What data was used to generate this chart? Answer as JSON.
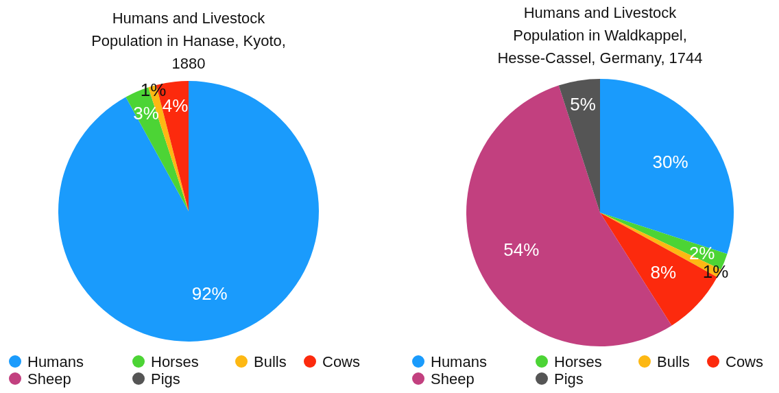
{
  "chart_data": [
    {
      "type": "pie",
      "title": "Humans and Livestock\nPopulation in Hanase, Kyoto,\n1880",
      "categories": [
        "Humans",
        "Horses",
        "Bulls",
        "Cows",
        "Sheep",
        "Pigs"
      ],
      "values": [
        92,
        3,
        1,
        4,
        0,
        0
      ],
      "value_labels": [
        "92%",
        "3%",
        "1%",
        "4%",
        null,
        null
      ],
      "colors": [
        "#1a9bfc",
        "#4cd435",
        "#fdb813",
        "#fc2a0d",
        "#c2407f",
        "#555555"
      ],
      "legend": "bottom"
    },
    {
      "type": "pie",
      "title": "Humans and Livestock\nPopulation in Waldkappel,\nHesse-Cassel, Germany, 1744",
      "categories": [
        "Humans",
        "Horses",
        "Bulls",
        "Cows",
        "Sheep",
        "Pigs"
      ],
      "values": [
        30,
        2,
        1,
        8,
        54,
        5
      ],
      "value_labels": [
        "30%",
        "2%",
        "1%",
        "8%",
        "54%",
        "5%"
      ],
      "colors": [
        "#1a9bfc",
        "#4cd435",
        "#fdb813",
        "#fc2a0d",
        "#c2407f",
        "#555555"
      ],
      "legend": "bottom"
    }
  ]
}
